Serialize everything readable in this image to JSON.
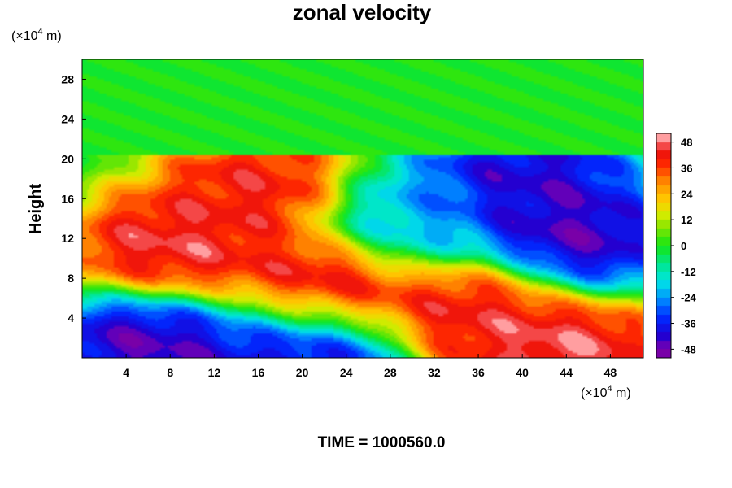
{
  "chart_data": {
    "type": "heatmap",
    "title": "zonal velocity",
    "ylabel": "Height",
    "xlabel": "",
    "y_unit": "(×10",
    "x_unit": "(×10",
    "unit_exp": "4",
    "unit_tail": " m)",
    "xlim": [
      0,
      51
    ],
    "ylim": [
      0,
      30
    ],
    "x_ticks": [
      4,
      8,
      12,
      16,
      20,
      24,
      28,
      32,
      36,
      40,
      44,
      48
    ],
    "y_ticks": [
      4,
      8,
      12,
      16,
      20,
      24,
      28
    ],
    "colorbar": {
      "range": [
        -52,
        52
      ],
      "ticks": [
        48,
        36,
        24,
        12,
        0,
        -12,
        -24,
        -36,
        -48
      ],
      "levels": 26
    },
    "grid": false,
    "field_note_features": [
      {
        "kind": "uniform_layer",
        "y_from": 20.5,
        "y_to": 30,
        "value": 0
      },
      {
        "kind": "max",
        "x": 8,
        "y": 11,
        "value": 50
      },
      {
        "kind": "max",
        "x": 16,
        "y": 17,
        "value": 46
      },
      {
        "kind": "max",
        "x": 22,
        "y": 7,
        "value": 52
      },
      {
        "kind": "max",
        "x": 36,
        "y": 5,
        "value": 48
      },
      {
        "kind": "max",
        "x": 44,
        "y": 0.5,
        "value": 52
      },
      {
        "kind": "min",
        "x": 44,
        "y": 12,
        "value": -50
      },
      {
        "kind": "min",
        "x": 40,
        "y": 18,
        "value": -46
      },
      {
        "kind": "min",
        "x": 6,
        "y": 1.5,
        "value": -50
      },
      {
        "kind": "min",
        "x": 20,
        "y": 1,
        "value": -48
      },
      {
        "kind": "min",
        "x": 30,
        "y": 14,
        "value": -24
      }
    ]
  },
  "footer": {
    "time_label": "TIME = 1000560.0"
  }
}
